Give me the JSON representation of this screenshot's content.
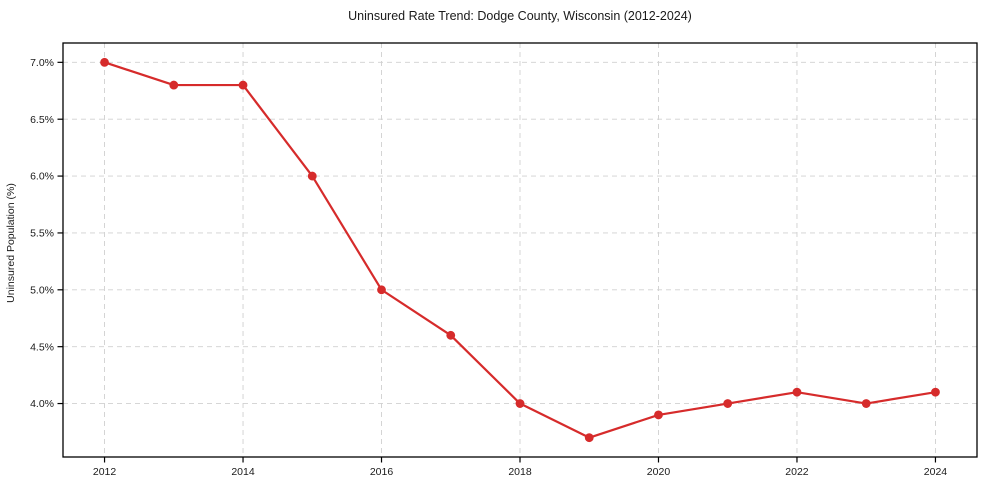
{
  "chart_data": {
    "type": "line",
    "title": "Uninsured Rate Trend: Dodge County, Wisconsin (2012-2024)",
    "xlabel": "",
    "ylabel": "Uninsured Population (%)",
    "x": [
      2012,
      2013,
      2014,
      2015,
      2016,
      2017,
      2018,
      2019,
      2020,
      2021,
      2022,
      2023,
      2024
    ],
    "series": [
      {
        "name": "Uninsured Rate",
        "values": [
          7.0,
          6.8,
          6.8,
          6.0,
          5.0,
          4.6,
          4.0,
          3.7,
          3.9,
          4.0,
          4.1,
          4.0,
          4.1
        ],
        "color": "#d62b2b",
        "marker": "circle"
      }
    ],
    "xlim": [
      2011.4,
      2024.6
    ],
    "ylim": [
      3.53,
      7.17
    ],
    "x_ticks": [
      2012,
      2014,
      2016,
      2018,
      2020,
      2022,
      2024
    ],
    "x_tick_labels": [
      "2012",
      "2014",
      "2016",
      "2018",
      "2020",
      "2022",
      "2024"
    ],
    "y_ticks": [
      4.0,
      4.5,
      5.0,
      5.5,
      6.0,
      6.5,
      7.0
    ],
    "y_tick_labels": [
      "4.0%",
      "4.5%",
      "5.0%",
      "5.5%",
      "6.0%",
      "6.5%",
      "7.0%"
    ],
    "grid": true,
    "grid_color": "#d0d0d0",
    "axis_color": "#000000",
    "text_color": "#1a1a1a",
    "background_color": "#ffffff",
    "legend": "none"
  }
}
